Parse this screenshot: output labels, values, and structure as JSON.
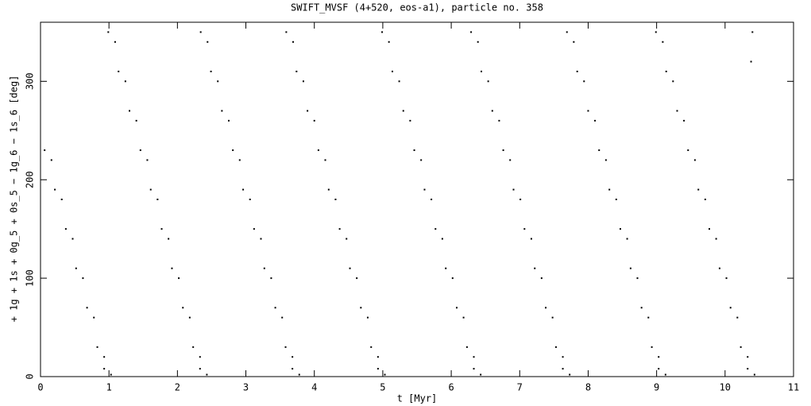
{
  "chart_data": {
    "type": "scatter",
    "title": "SWIFT_MVSF (4+520, eos-a1), particle no. 358",
    "xlabel": "t [Myr]",
    "ylabel": "+ 1g + 1s + 0g_5 + 0s_5 − 1g_6 − 1s_6 [deg]",
    "color": "#000000",
    "xlim": [
      0,
      11
    ],
    "xticks": [
      0,
      1,
      2,
      3,
      4,
      5,
      6,
      7,
      8,
      9,
      10,
      11
    ],
    "ylim": [
      0,
      360
    ],
    "yticks": [
      0,
      100,
      200,
      300
    ],
    "x": [
      0.06,
      0.16,
      0.21,
      0.31,
      0.37,
      0.47,
      0.52,
      0.62,
      0.68,
      0.78,
      0.83,
      0.93,
      0.93,
      1.03,
      0.99,
      1.09,
      1.14,
      1.24,
      1.3,
      1.4,
      1.46,
      1.56,
      1.61,
      1.71,
      1.77,
      1.87,
      1.92,
      2.02,
      2.08,
      2.18,
      2.23,
      2.33,
      2.33,
      2.43,
      2.34,
      2.44,
      2.49,
      2.59,
      2.65,
      2.75,
      2.81,
      2.91,
      2.96,
      3.06,
      3.12,
      3.22,
      3.27,
      3.37,
      3.43,
      3.53,
      3.58,
      3.68,
      3.68,
      3.78,
      3.59,
      3.69,
      3.74,
      3.84,
      3.9,
      4.0,
      4.06,
      4.16,
      4.21,
      4.31,
      4.37,
      4.47,
      4.52,
      4.62,
      4.68,
      4.78,
      4.83,
      4.93,
      4.93,
      5.03,
      4.99,
      5.09,
      5.14,
      5.24,
      5.3,
      5.4,
      5.46,
      5.56,
      5.61,
      5.71,
      5.77,
      5.87,
      5.92,
      6.02,
      6.08,
      6.18,
      6.23,
      6.33,
      6.33,
      6.43,
      6.29,
      6.39,
      6.44,
      6.54,
      6.6,
      6.7,
      6.76,
      6.86,
      6.91,
      7.01,
      7.07,
      7.17,
      7.22,
      7.32,
      7.38,
      7.48,
      7.53,
      7.63,
      7.63,
      7.73,
      7.69,
      7.79,
      7.84,
      7.94,
      8.0,
      8.1,
      8.16,
      8.26,
      8.31,
      8.41,
      8.47,
      8.57,
      8.62,
      8.72,
      8.78,
      8.88,
      8.93,
      9.03,
      9.03,
      9.13,
      8.99,
      9.09,
      9.14,
      9.24,
      9.3,
      9.4,
      9.46,
      9.56,
      9.61,
      9.71,
      9.77,
      9.87,
      9.92,
      10.02,
      10.08,
      10.18,
      10.23,
      10.33,
      10.33,
      10.43,
      10.4,
      10.38
    ],
    "y": [
      230,
      220,
      190,
      180,
      150,
      140,
      110,
      100,
      70,
      60,
      30,
      20,
      8,
      2,
      350,
      340,
      310,
      300,
      270,
      260,
      230,
      220,
      190,
      180,
      150,
      140,
      110,
      100,
      70,
      60,
      30,
      20,
      8,
      2,
      350,
      340,
      310,
      300,
      270,
      260,
      230,
      220,
      190,
      180,
      150,
      140,
      110,
      100,
      70,
      60,
      30,
      20,
      8,
      2,
      350,
      340,
      310,
      300,
      270,
      260,
      230,
      220,
      190,
      180,
      150,
      140,
      110,
      100,
      70,
      60,
      30,
      20,
      8,
      2,
      350,
      340,
      310,
      300,
      270,
      260,
      230,
      220,
      190,
      180,
      150,
      140,
      110,
      100,
      70,
      60,
      30,
      20,
      8,
      2,
      350,
      340,
      310,
      300,
      270,
      260,
      230,
      220,
      190,
      180,
      150,
      140,
      110,
      100,
      70,
      60,
      30,
      20,
      8,
      2,
      350,
      340,
      310,
      300,
      270,
      260,
      230,
      220,
      190,
      180,
      150,
      140,
      110,
      100,
      70,
      60,
      30,
      20,
      8,
      2,
      350,
      340,
      310,
      300,
      270,
      260,
      230,
      220,
      190,
      180,
      150,
      140,
      110,
      100,
      70,
      60,
      30,
      20,
      8,
      2,
      350,
      320
    ]
  }
}
